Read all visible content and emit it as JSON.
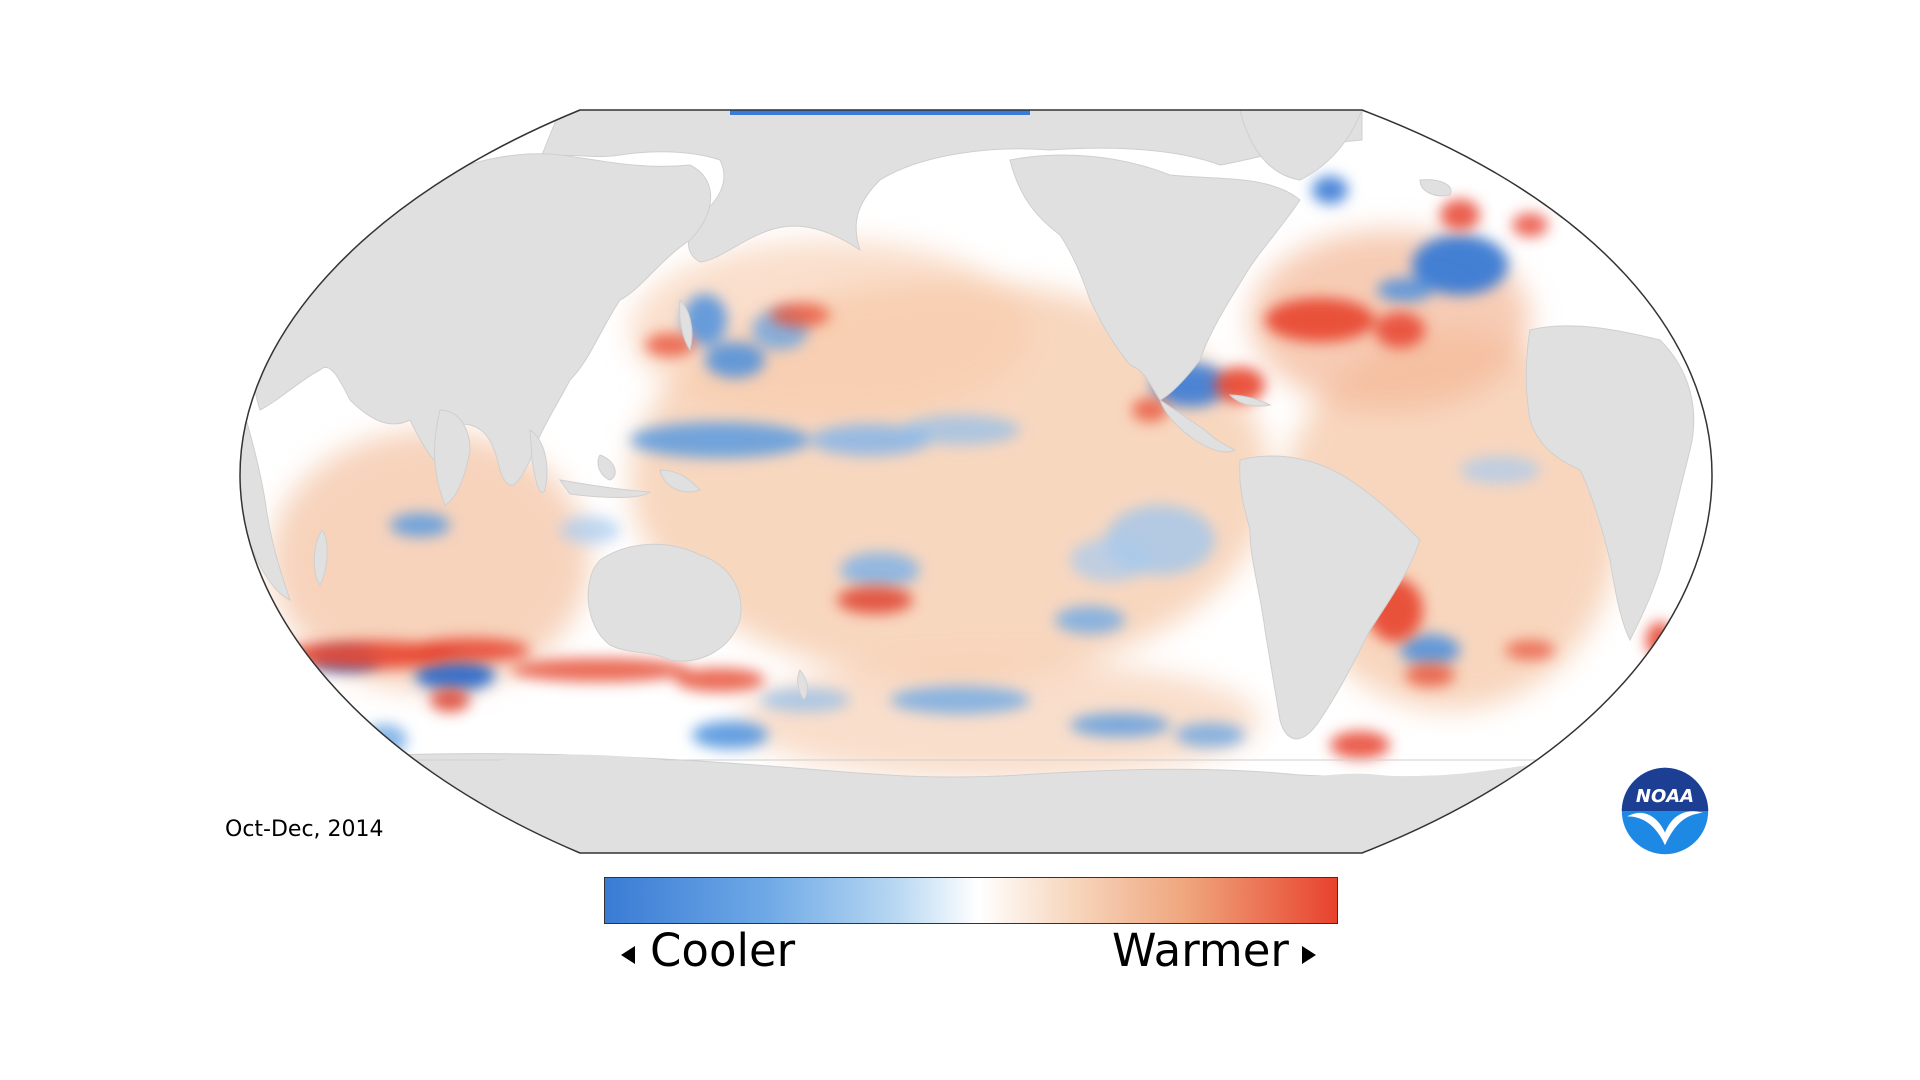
{
  "map": {
    "period": "Oct-Dec, 2014",
    "projection": "robinson-pacific-centered",
    "land_color": "#e0e0e0",
    "ocean_base_color": "#ffffff",
    "cool_color": "#3a7bd5",
    "warm_color": "#e8422e"
  },
  "legend": {
    "cooler_label": "Cooler",
    "warmer_label": "Warmer",
    "gradient_colors": [
      "#3a7bd5",
      "#6ea9e6",
      "#b9d8f2",
      "#ffffff",
      "#f8dcc6",
      "#efa37a",
      "#e8422e"
    ]
  },
  "logo": {
    "text": "NOAA",
    "icon": "noaa-seagull-logo",
    "colors": [
      "#1c3f94",
      "#1e88e5",
      "#ffffff"
    ]
  }
}
